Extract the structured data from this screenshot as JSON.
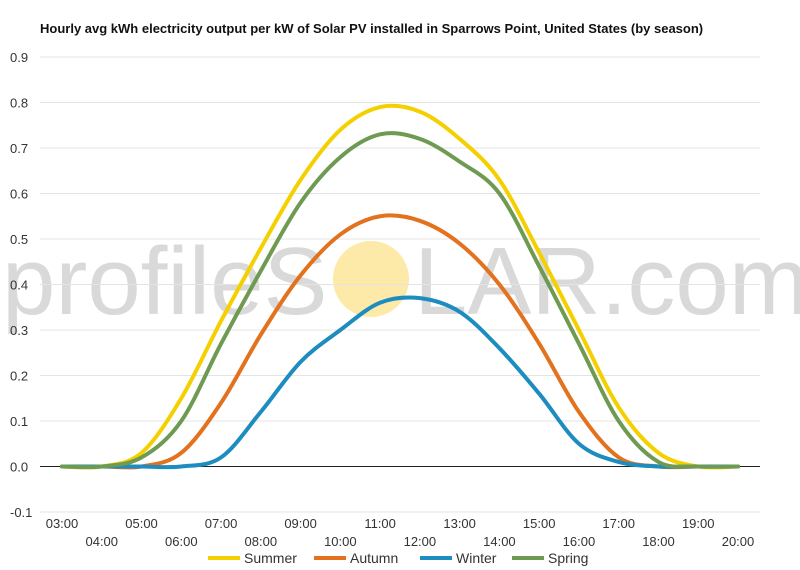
{
  "chart_data": {
    "type": "line",
    "title": "Hourly avg kWh electricity output per kW of Solar PV installed in Sparrows Point, United States (by season)",
    "xlabel": "",
    "ylabel": "",
    "ylim": [
      -0.1,
      0.9
    ],
    "yticks": [
      "-0.1",
      "0.0",
      "0.1",
      "0.2",
      "0.3",
      "0.4",
      "0.5",
      "0.6",
      "0.7",
      "0.8",
      "0.9"
    ],
    "x": [
      "03:00",
      "04:00",
      "05:00",
      "06:00",
      "07:00",
      "08:00",
      "09:00",
      "10:00",
      "11:00",
      "12:00",
      "13:00",
      "14:00",
      "15:00",
      "16:00",
      "17:00",
      "18:00",
      "19:00",
      "20:00"
    ],
    "grid": true,
    "legend": "bottom",
    "series": [
      {
        "name": "Summer",
        "color": "#f5d000",
        "values": [
          0.0,
          0.0,
          0.03,
          0.15,
          0.32,
          0.48,
          0.63,
          0.74,
          0.79,
          0.78,
          0.72,
          0.63,
          0.47,
          0.3,
          0.13,
          0.03,
          0.0,
          0.0
        ]
      },
      {
        "name": "Autumn",
        "color": "#e3721f",
        "values": [
          0.0,
          0.0,
          0.0,
          0.03,
          0.14,
          0.29,
          0.42,
          0.51,
          0.55,
          0.54,
          0.49,
          0.4,
          0.27,
          0.12,
          0.02,
          0.0,
          0.0,
          0.0
        ]
      },
      {
        "name": "Winter",
        "color": "#1d8cbf",
        "values": [
          0.0,
          0.0,
          0.0,
          0.0,
          0.02,
          0.12,
          0.23,
          0.3,
          0.36,
          0.37,
          0.34,
          0.26,
          0.16,
          0.05,
          0.01,
          0.0,
          0.0,
          0.0
        ]
      },
      {
        "name": "Spring",
        "color": "#6f9a52",
        "values": [
          0.0,
          0.0,
          0.02,
          0.1,
          0.27,
          0.43,
          0.58,
          0.68,
          0.73,
          0.72,
          0.67,
          0.6,
          0.44,
          0.27,
          0.1,
          0.01,
          0.0,
          0.0
        ]
      }
    ]
  },
  "watermark": {
    "left": "profileS",
    "right": "LAR.com",
    "sun_color": "#fde9a8"
  }
}
